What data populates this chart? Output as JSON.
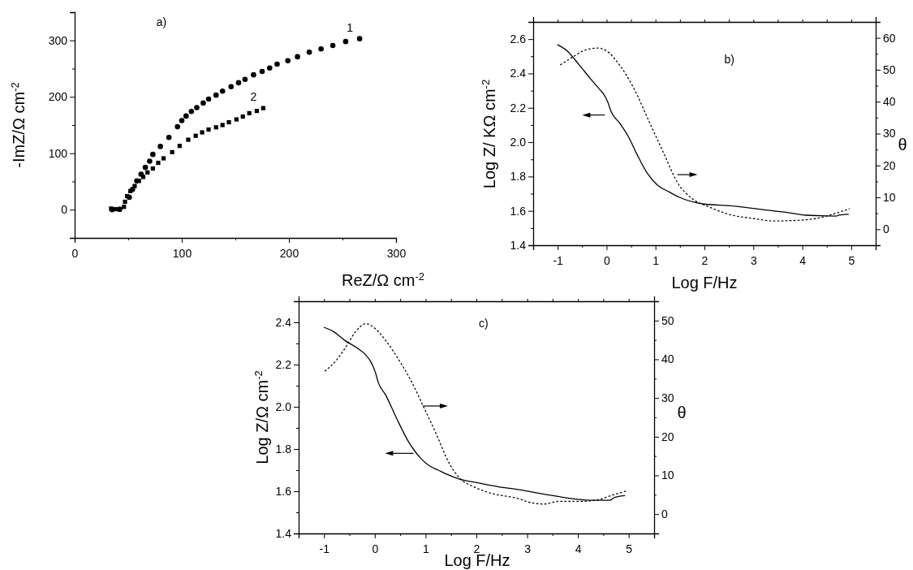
{
  "chart_data": [
    {
      "type": "scatter",
      "xlabel": "ReZ/Ω cm$^{-2}$",
      "ylabel": "-ImZ/Ω cm$^{-2}$",
      "annotations": [
        "a)"
      ],
      "xlim": [
        0,
        300
      ],
      "ylim": [
        -50,
        350
      ],
      "xticks": [
        0,
        {
          "value": 50,
          "label": null
        },
        100,
        {
          "value": 150,
          "label": null
        },
        200,
        {
          "value": 250,
          "label": null
        },
        300
      ],
      "yticks": [
        {
          "value": -50,
          "label": null
        },
        0,
        {
          "value": 50,
          "label": null
        },
        100,
        {
          "value": 150,
          "label": null
        },
        200,
        {
          "value": 250,
          "label": null
        },
        300,
        {
          "value": 350,
          "label": null
        }
      ],
      "series": [
        {
          "name": "1",
          "color": "#000000",
          "marker": "circle",
          "x": [
            266,
            253,
            241,
            230,
            219,
            208,
            199,
            189,
            182,
            175,
            167,
            159,
            153,
            146,
            138,
            132,
            125,
            120,
            114,
            109,
            104,
            100,
            96,
            88,
            80,
            73,
            70,
            66,
            62,
            58,
            54,
            51,
            47,
            42,
            35
          ],
          "values": [
            303,
            298,
            291,
            285,
            279,
            271,
            264,
            258,
            251,
            245,
            239,
            231,
            225,
            218,
            210,
            203,
            196,
            189,
            181,
            174,
            166,
            158,
            147,
            128,
            112,
            98,
            86,
            75,
            63,
            51,
            36,
            22,
            null,
            1,
            0
          ]
        },
        {
          "name": "2",
          "color": "#000000",
          "marker": "square",
          "x": [
            176,
            170,
            163,
            157,
            151,
            144,
            138,
            132,
            125,
            119,
            113,
            106,
            98,
            91,
            83,
            78,
            73,
            68,
            64,
            60,
            56,
            52,
            49,
            47,
            46,
            42,
            38,
            34
          ],
          "values": [
            180,
            175,
            171,
            165,
            160,
            155,
            150,
            146,
            142,
            137,
            131,
            124,
            113,
            102,
            91,
            83,
            73,
            66,
            58,
            51,
            42,
            33,
            24,
            14,
            5,
            0,
            1,
            2
          ]
        }
      ]
    },
    {
      "type": "line",
      "xlabel": "Log F/Hz",
      "ylabel": "Log Z/ KΩ cm$^{-2}$",
      "y2label": "θ",
      "annotations": [
        "b)"
      ],
      "xlim": [
        -1.5,
        5.5
      ],
      "ylim": [
        1.4,
        2.7
      ],
      "y2lim": [
        -5,
        65
      ],
      "xticks": [
        {
          "value": -1.5,
          "label": null
        },
        -1,
        {
          "value": -0.5,
          "label": null
        },
        0,
        {
          "value": 0.5,
          "label": null
        },
        1,
        {
          "value": 1.5,
          "label": null
        },
        2,
        {
          "value": 2.5,
          "label": null
        },
        3,
        {
          "value": 3.5,
          "label": null
        },
        4,
        {
          "value": 4.5,
          "label": null
        },
        5,
        {
          "value": 5.5,
          "label": null
        }
      ],
      "yticks": [
        1.4,
        {
          "value": 1.5,
          "label": null
        },
        1.6,
        {
          "value": 1.7,
          "label": null
        },
        1.8,
        {
          "value": 1.9,
          "label": null
        },
        {
          "value": 2,
          "label": "2.0"
        },
        {
          "value": 2.1,
          "label": null
        },
        2.2,
        {
          "value": 2.3,
          "label": null
        },
        2.4,
        {
          "value": 2.5,
          "label": null
        },
        2.6
      ],
      "y2ticks": [
        0,
        {
          "value": 5,
          "label": null
        },
        10,
        {
          "value": 15,
          "label": null
        },
        20,
        {
          "value": 25,
          "label": null
        },
        30,
        {
          "value": 35,
          "label": null
        },
        40,
        {
          "value": 45,
          "label": null
        },
        50,
        {
          "value": 55,
          "label": null
        },
        60
      ],
      "series": [
        {
          "color": "#000000",
          "line_style": "solid",
          "x": [
            -1,
            -0.8,
            -0.56,
            -0.33,
            -0.12,
            -0.06,
            0.03,
            0.09,
            0.27,
            0.45,
            0.62,
            0.83,
            1.04,
            1.28,
            1.48,
            1.99,
            2.52,
            3.12,
            3.71,
            4.07,
            4.69,
            4.75,
            4.94
          ],
          "values": [
            2.567,
            2.53,
            2.45,
            2.37,
            2.3,
            2.28,
            2.23,
            2.18,
            2.11,
            2.03,
            1.93,
            1.82,
            1.75,
            1.71,
            1.68,
            1.64,
            1.63,
            1.61,
            1.59,
            1.575,
            1.57,
            1.575,
            1.58
          ]
        },
        {
          "color": "#000000",
          "line_style": "dotted",
          "axis": "y2",
          "x": [
            -0.94,
            -0.68,
            -0.45,
            -0.18,
            0,
            0.27,
            0.56,
            0.86,
            1.16,
            1.45,
            1.75,
            2.11,
            2.52,
            3,
            3.41,
            4,
            4.36,
            4.6,
            4.96
          ],
          "values": [
            51.6,
            54.1,
            56.1,
            56.8,
            55.9,
            51.4,
            44.1,
            34.1,
            24.1,
            14.6,
            9.6,
            6.9,
            4.6,
            3.4,
            2.6,
            2.9,
            3.6,
            4.6,
            6.4
          ]
        }
      ]
    },
    {
      "type": "line",
      "xlabel": "Log F/Hz",
      "ylabel": "Log Z/Ω cm$^{-2}$",
      "y2label": "θ",
      "annotations": [
        "c)"
      ],
      "xlim": [
        -1.5,
        5.5
      ],
      "ylim": [
        1.4,
        2.5
      ],
      "y2lim": [
        -5,
        55
      ],
      "xticks": [
        {
          "value": -1.5,
          "label": null
        },
        -1,
        {
          "value": -0.5,
          "label": null
        },
        0,
        {
          "value": 0.5,
          "label": null
        },
        1,
        {
          "value": 1.5,
          "label": null
        },
        2,
        {
          "value": 2.5,
          "label": null
        },
        3,
        {
          "value": 3.5,
          "label": null
        },
        4,
        {
          "value": 4.5,
          "label": null
        },
        5,
        {
          "value": 5.5,
          "label": null
        }
      ],
      "yticks": [
        1.4,
        {
          "value": 1.5,
          "label": null
        },
        1.6,
        {
          "value": 1.7,
          "label": null
        },
        1.8,
        {
          "value": 1.9,
          "label": null
        },
        {
          "value": 2,
          "label": "2.0"
        },
        {
          "value": 2.1,
          "label": null
        },
        2.2,
        {
          "value": 2.3,
          "label": null
        },
        2.4,
        {
          "value": 2.5,
          "label": null
        }
      ],
      "y2ticks": [
        0,
        {
          "value": 5,
          "label": null
        },
        10,
        {
          "value": 15,
          "label": null
        },
        20,
        {
          "value": 25,
          "label": null
        },
        30,
        {
          "value": 35,
          "label": null
        },
        40,
        {
          "value": 45,
          "label": null
        },
        50,
        {
          "value": 55,
          "label": null
        }
      ],
      "series": [
        {
          "color": "#000000",
          "line_style": "solid",
          "x": [
            -1,
            -0.82,
            -0.59,
            -0.35,
            -0.17,
            -0.08,
            0.01,
            0.07,
            0.21,
            0.42,
            0.66,
            0.9,
            1.07,
            1.25,
            1.43,
            1.67,
            1.96,
            2.44,
            2.85,
            3.33,
            3.92,
            4.27,
            4.63,
            4.72,
            4.92
          ],
          "values": [
            2.376,
            2.357,
            2.314,
            2.279,
            2.243,
            2.214,
            2.164,
            2.114,
            2.057,
            1.95,
            1.836,
            1.757,
            1.721,
            1.7,
            1.679,
            1.657,
            1.643,
            1.621,
            1.607,
            1.586,
            1.564,
            1.557,
            1.557,
            1.571,
            1.579
          ]
        },
        {
          "color": "#000000",
          "line_style": "dotted",
          "axis": "y2",
          "x": [
            -0.98,
            -0.76,
            -0.59,
            -0.38,
            -0.18,
            0.01,
            0.24,
            0.48,
            0.72,
            0.95,
            1.25,
            1.43,
            1.67,
            1.96,
            2.26,
            2.85,
            3.03,
            3.33,
            3.62,
            4.04,
            4.39,
            4.63,
            4.98
          ],
          "values": [
            37,
            39.7,
            42.8,
            47.1,
            49.2,
            47.9,
            44.4,
            39.7,
            34.3,
            28,
            19.5,
            14,
            9.3,
            7,
            5.5,
            3.9,
            3.1,
            2.6,
            3.3,
            3.3,
            3.7,
            4.7,
            6.1
          ]
        }
      ]
    }
  ]
}
